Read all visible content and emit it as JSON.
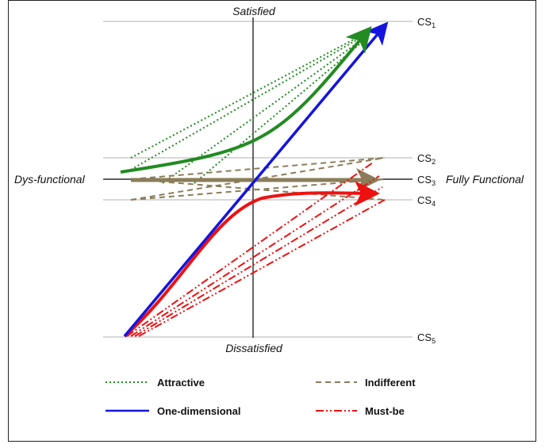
{
  "axes": {
    "top": "Satisfied",
    "bottom": "Dissatisfied",
    "left": "Dys-functional",
    "right": "Fully Functional"
  },
  "levels": [
    {
      "label": "CS",
      "sub": "1"
    },
    {
      "label": "CS",
      "sub": "2"
    },
    {
      "label": "CS",
      "sub": "3"
    },
    {
      "label": "CS",
      "sub": "4"
    },
    {
      "label": "CS",
      "sub": "5"
    }
  ],
  "legend": {
    "attractive": "Attractive",
    "indifferent": "Indifferent",
    "one_dimensional": "One-dimensional",
    "must_be": "Must-be"
  },
  "colors": {
    "attractive": "#228B22",
    "indifferent": "#8B7D5A",
    "one_dimensional": "#1414E0",
    "must_be": "#EE1111",
    "grid": "#B0B0B0",
    "axis": "#000000"
  }
}
